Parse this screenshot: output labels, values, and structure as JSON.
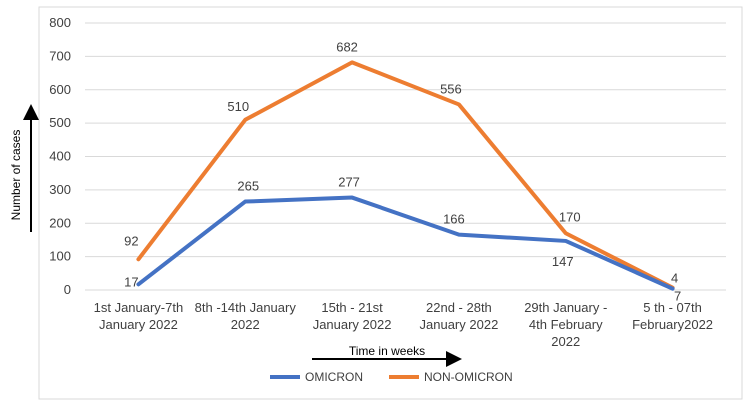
{
  "chart_data": {
    "type": "line",
    "categories": [
      [
        "1st January-7th",
        "January 2022"
      ],
      [
        "8th -14th January",
        "2022"
      ],
      [
        "15th - 21st",
        "January 2022"
      ],
      [
        "22nd - 28th",
        "January 2022"
      ],
      [
        "29th January -",
        "4th February",
        "2022"
      ],
      [
        "5 th - 07th",
        "February2022"
      ]
    ],
    "series": [
      {
        "name": "OMICRON",
        "color": "#4472C4",
        "values": [
          17,
          265,
          277,
          166,
          147,
          4
        ],
        "labels": [
          "17",
          "265",
          "277",
          "166",
          "147",
          "4"
        ]
      },
      {
        "name": "NON-OMICRON",
        "color": "#ED7D31",
        "values": [
          92,
          510,
          682,
          556,
          170,
          7
        ],
        "labels": [
          "92",
          "510",
          "682",
          "556",
          "170",
          "7"
        ]
      }
    ],
    "xlabel": "Time in weeks",
    "ylabel": "Number of cases",
    "ylim": [
      0,
      800
    ],
    "yticks": [
      0,
      100,
      200,
      300,
      400,
      500,
      600,
      700,
      800
    ],
    "grid": true,
    "legend": "bottom"
  }
}
